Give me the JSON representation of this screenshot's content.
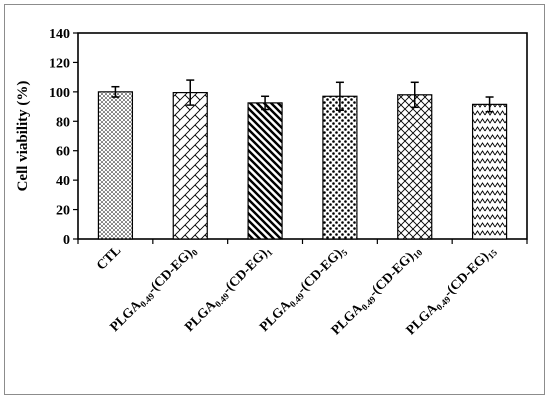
{
  "chart_data": {
    "type": "bar",
    "title": "",
    "xlabel": "",
    "ylabel": "Cell viability (%)",
    "ylim": [
      0,
      140
    ],
    "yticks": [
      0,
      20,
      40,
      60,
      80,
      100,
      120,
      140
    ],
    "grid": false,
    "legend": "none",
    "categories": [
      {
        "base": "CTL",
        "parts": []
      },
      {
        "base": "",
        "parts": [
          {
            "t": "PLGA",
            "s": "n"
          },
          {
            "t": "0.49",
            "s": "sub"
          },
          {
            "t": "-(CD-EG)",
            "s": "n"
          },
          {
            "t": "0",
            "s": "sub"
          }
        ]
      },
      {
        "base": "",
        "parts": [
          {
            "t": "PLGA",
            "s": "n"
          },
          {
            "t": "0.49",
            "s": "sub"
          },
          {
            "t": "-(CD-EG)",
            "s": "n"
          },
          {
            "t": "1",
            "s": "sub"
          }
        ]
      },
      {
        "base": "",
        "parts": [
          {
            "t": "PLGA",
            "s": "n"
          },
          {
            "t": "0.49",
            "s": "sub"
          },
          {
            "t": "-(CD-EG)",
            "s": "n"
          },
          {
            "t": "5",
            "s": "sub"
          }
        ]
      },
      {
        "base": "",
        "parts": [
          {
            "t": "PLGA",
            "s": "n"
          },
          {
            "t": "0.49",
            "s": "sub"
          },
          {
            "t": "-(CD-EG)",
            "s": "n"
          },
          {
            "t": "10",
            "s": "sub"
          }
        ]
      },
      {
        "base": "",
        "parts": [
          {
            "t": "PLGA",
            "s": "n"
          },
          {
            "t": "0.49",
            "s": "sub"
          },
          {
            "t": "-(CD-EG)",
            "s": "n"
          },
          {
            "t": "15",
            "s": "sub"
          }
        ]
      }
    ],
    "values": [
      100,
      99.5,
      92.5,
      97,
      98,
      91.5
    ],
    "errors": [
      3.5,
      8.5,
      4.5,
      9.5,
      8.5,
      5
    ],
    "patterns": [
      "dots-fine",
      "diagonal-cross",
      "diagonal-thick",
      "dots-coarse",
      "crosshatch",
      "zigzag"
    ]
  }
}
